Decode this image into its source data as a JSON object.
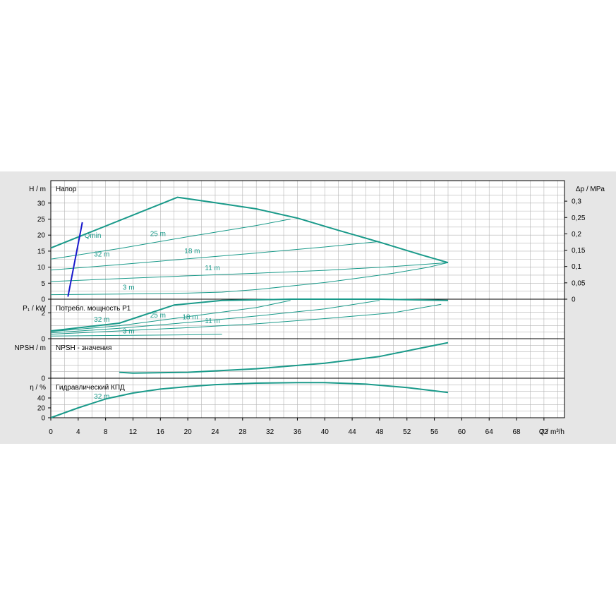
{
  "chart_data": [
    {
      "type": "line",
      "title": "Напор",
      "ylabel": "H / m",
      "ylabel_right": "Δp / MPa",
      "x_unit": "Q / m³/h",
      "xlim": [
        0,
        75
      ],
      "ylim": [
        0,
        37
      ],
      "y_ticks": [
        0,
        5,
        10,
        15,
        20,
        25,
        30
      ],
      "right_ticks": [
        0,
        0.05,
        0.1,
        0.15,
        0.2,
        0.25,
        0.3
      ],
      "right_tick_labels": [
        "0",
        "0,05",
        "0,1",
        "0,15",
        "0,2",
        "0,25",
        "0,3"
      ],
      "series": [
        {
          "name": "32 m",
          "x": [
            0,
            18.5,
            24,
            30,
            36,
            42,
            48,
            54,
            58
          ],
          "y": [
            16,
            31.8,
            30.1,
            28.2,
            25.3,
            21.5,
            17.8,
            13.9,
            11.4
          ]
        },
        {
          "name": "25 m",
          "x": [
            0,
            10,
            20,
            30,
            35
          ],
          "y": [
            12.5,
            15.8,
            19.5,
            23,
            25
          ]
        },
        {
          "name": "18 m",
          "x": [
            0,
            10,
            20,
            30,
            40,
            48
          ],
          "y": [
            9.1,
            10.8,
            12.6,
            14.4,
            16.3,
            18
          ]
        },
        {
          "name": "11 m",
          "x": [
            0,
            10,
            20,
            30,
            40,
            50,
            58
          ],
          "y": [
            5.5,
            6.4,
            7.3,
            8.1,
            9,
            10.2,
            11.4
          ]
        },
        {
          "name": "3 m",
          "x": [
            0,
            10,
            20,
            25,
            30,
            35,
            40,
            45,
            50,
            55,
            58
          ],
          "y": [
            1.4,
            1.6,
            1.9,
            2.2,
            3,
            4.1,
            5.2,
            6.6,
            8.1,
            9.9,
            11.4
          ]
        },
        {
          "name": "Qmin",
          "x": [
            2.5,
            4.6
          ],
          "y": [
            0.8,
            24
          ]
        }
      ]
    },
    {
      "type": "line",
      "title": "Потребл. мощность P1",
      "ylabel": "P₁ / kW",
      "ylim": [
        0,
        3.05
      ],
      "y_ticks": [
        0,
        2
      ],
      "series": [
        {
          "name": "32 m",
          "x": [
            0,
            10,
            18,
            25,
            35,
            48,
            58
          ],
          "y": [
            0.6,
            1.2,
            2.6,
            2.95,
            3.05,
            3.05,
            2.95
          ]
        },
        {
          "name": "25 m",
          "x": [
            0,
            10,
            20,
            30,
            35
          ],
          "y": [
            0.55,
            1,
            1.7,
            2.4,
            2.95
          ]
        },
        {
          "name": "18 m",
          "x": [
            0,
            10,
            20,
            30,
            40,
            48
          ],
          "y": [
            0.45,
            0.8,
            1.25,
            1.75,
            2.3,
            2.95
          ]
        },
        {
          "name": "11 m",
          "x": [
            0,
            10,
            20,
            30,
            40,
            50,
            57
          ],
          "y": [
            0.35,
            0.6,
            0.85,
            1.15,
            1.55,
            2,
            2.65
          ]
        },
        {
          "name": "3 m",
          "x": [
            0,
            10,
            20,
            25
          ],
          "y": [
            0.2,
            0.25,
            0.3,
            0.35
          ]
        }
      ]
    },
    {
      "type": "line",
      "title": "NPSH - значения",
      "ylabel": "NPSH / m",
      "ylim": [
        0,
        10
      ],
      "y_ticks": [
        0
      ],
      "series": [
        {
          "name": "",
          "x": [
            10,
            12,
            20,
            30,
            40,
            48,
            54,
            58
          ],
          "y": [
            1.5,
            1.3,
            1.5,
            2.4,
            3.8,
            5.5,
            7.6,
            9
          ]
        }
      ]
    },
    {
      "type": "line",
      "title": "Гидравлический КПД",
      "ylabel": "η / %",
      "ylim": [
        0,
        80
      ],
      "y_ticks": [
        0,
        20,
        40
      ],
      "series": [
        {
          "name": "32 m",
          "x": [
            0,
            4,
            8,
            12,
            16,
            20,
            24,
            30,
            36,
            40,
            46,
            52,
            58
          ],
          "y": [
            0,
            20,
            38,
            50,
            58,
            63,
            67,
            70,
            71,
            71,
            68,
            61,
            51
          ]
        }
      ]
    }
  ],
  "x_axis": {
    "ticks": [
      0,
      4,
      8,
      12,
      16,
      20,
      24,
      28,
      32,
      36,
      40,
      44,
      48,
      52,
      56,
      60,
      64,
      68,
      72
    ],
    "label": "Q / m³/h"
  },
  "colors": {
    "curve": "#1a9a8a",
    "qmin": "#1a1acc",
    "grid": "#b4b4b4",
    "panel": "#e6e6e6"
  }
}
